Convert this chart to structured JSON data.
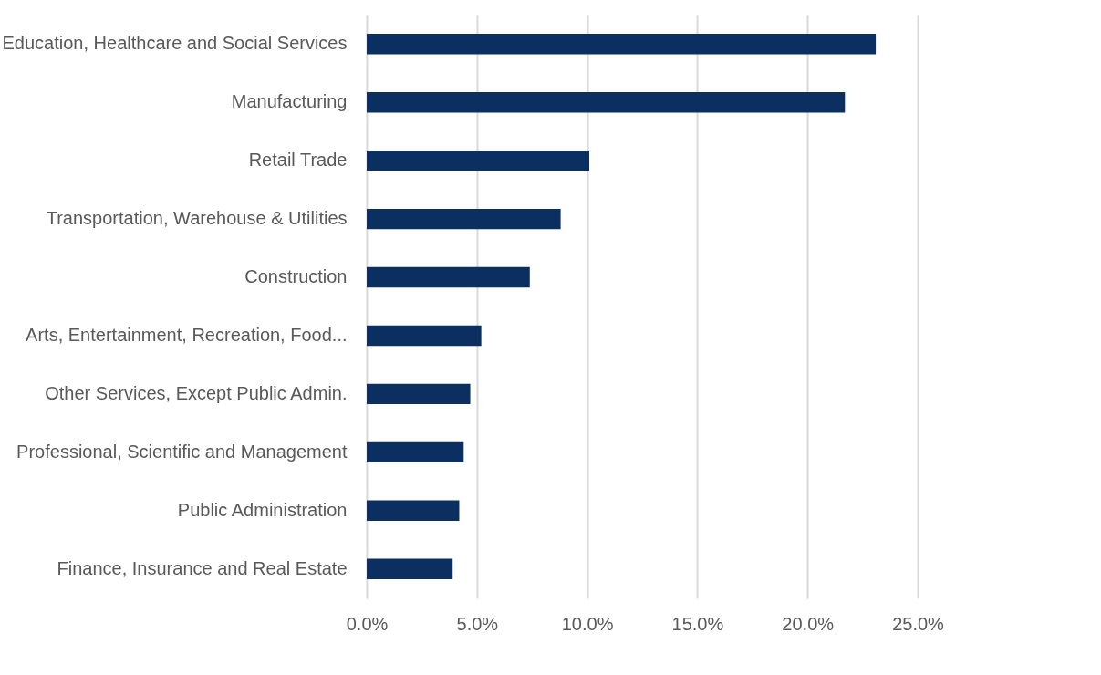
{
  "chart_data": {
    "type": "bar",
    "orientation": "horizontal",
    "categories": [
      "Education, Healthcare and Social Services",
      "Manufacturing",
      "Retail Trade",
      "Transportation, Warehouse & Utilities",
      "Construction",
      "Arts, Entertainment, Recreation, Food...",
      "Other Services, Except Public Admin.",
      "Professional, Scientific and Management",
      "Public Administration",
      "Finance, Insurance and Real Estate"
    ],
    "values": [
      23.1,
      21.7,
      10.1,
      8.8,
      7.4,
      5.2,
      4.7,
      4.4,
      4.2,
      3.9
    ],
    "color": "#0c2f62",
    "xlim": [
      0,
      25
    ],
    "xticks": [
      {
        "value": 0,
        "label": "0.0%"
      },
      {
        "value": 5,
        "label": "5.0%"
      },
      {
        "value": 10,
        "label": "10.0%"
      },
      {
        "value": 15,
        "label": "15.0%"
      },
      {
        "value": 20,
        "label": "20.0%"
      },
      {
        "value": 25,
        "label": "25.0%"
      }
    ],
    "grid": "x"
  }
}
